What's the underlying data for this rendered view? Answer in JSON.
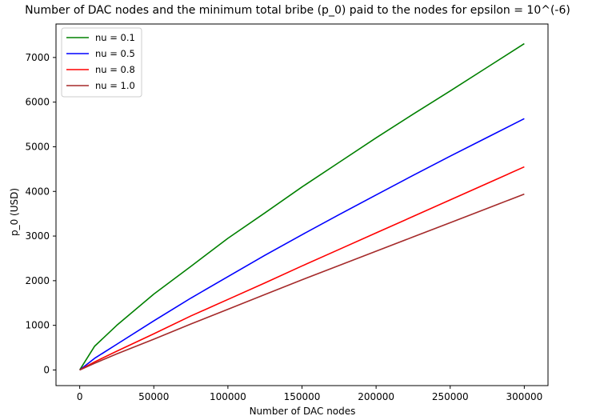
{
  "chart_data": {
    "type": "line",
    "title": "Number of DAC nodes and the minimum total bribe (p_0) paid to the nodes for epsilon = 10^(-6)",
    "xlabel": "Number of DAC nodes",
    "ylabel": "p_0 (USD)",
    "xlim": [
      -16000,
      316000
    ],
    "ylim": [
      -350,
      7750
    ],
    "xticks": [
      0,
      50000,
      100000,
      150000,
      200000,
      250000,
      300000
    ],
    "yticks": [
      0,
      1000,
      2000,
      3000,
      4000,
      5000,
      6000,
      7000
    ],
    "grid": false,
    "legend": "top-left",
    "x": [
      0,
      10000,
      25000,
      50000,
      75000,
      100000,
      125000,
      150000,
      175000,
      200000,
      225000,
      250000,
      275000,
      300000
    ],
    "series": [
      {
        "name": "nu = 0.1",
        "color": "#008000",
        "values": [
          0,
          530,
          1000,
          1700,
          2320,
          2950,
          3520,
          4100,
          4650,
          5200,
          5730,
          6250,
          6780,
          7310
        ]
      },
      {
        "name": "nu = 0.5",
        "color": "#0000ff",
        "values": [
          0,
          260,
          575,
          1100,
          1610,
          2090,
          2570,
          3030,
          3480,
          3920,
          4360,
          4790,
          5210,
          5630
        ]
      },
      {
        "name": "nu = 0.8",
        "color": "#ff0000",
        "values": [
          0,
          180,
          420,
          810,
          1210,
          1580,
          1950,
          2330,
          2700,
          3070,
          3440,
          3810,
          4180,
          4550
        ]
      },
      {
        "name": "nu = 1.0",
        "color": "#a52a2a",
        "values": [
          0,
          150,
          360,
          690,
          1030,
          1360,
          1690,
          2020,
          2340,
          2660,
          2980,
          3300,
          3620,
          3940
        ]
      }
    ]
  }
}
